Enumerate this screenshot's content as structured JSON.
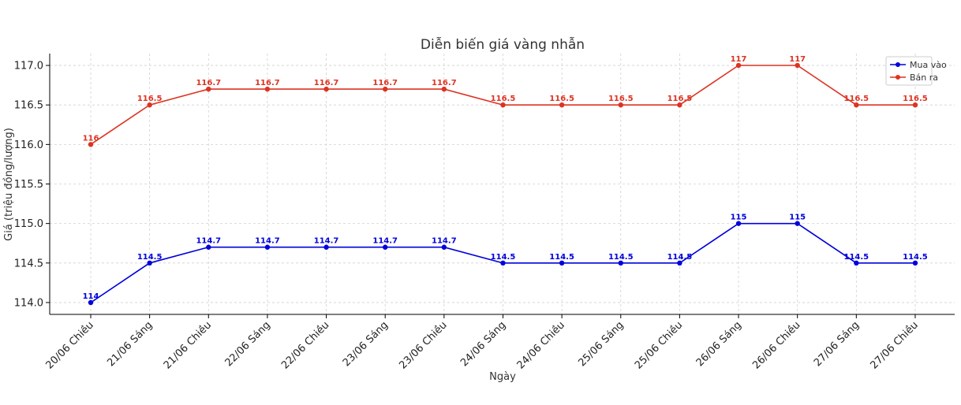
{
  "chart_data": {
    "type": "line",
    "title": "Diễn biến giá vàng nhẫn",
    "xlabel": "Ngày",
    "ylabel": "Giá (triệu đồng/lượng)",
    "ylim": [
      113.85,
      117.15
    ],
    "yticks": [
      "114.0",
      "114.5",
      "115.0",
      "115.5",
      "116.0",
      "116.5",
      "117.0"
    ],
    "grid": true,
    "legend_position": "top-right",
    "categories": [
      "20/06 Chiều",
      "21/06 Sáng",
      "21/06 Chiều",
      "22/06 Sáng",
      "22/06 Chiều",
      "23/06 Sáng",
      "23/06 Chiều",
      "24/06 Sáng",
      "24/06 Chiều",
      "25/06 Sáng",
      "25/06 Chiều",
      "26/06 Sáng",
      "26/06 Chiều",
      "27/06 Sáng",
      "27/06 Chiều"
    ],
    "series": [
      {
        "name": "Mua vào",
        "color": "#0000dd",
        "values": [
          114,
          114.5,
          114.7,
          114.7,
          114.7,
          114.7,
          114.7,
          114.5,
          114.5,
          114.5,
          114.5,
          115,
          115,
          114.5,
          114.5
        ],
        "labels": [
          "114",
          "114.5",
          "114.7",
          "114.7",
          "114.7",
          "114.7",
          "114.7",
          "114.5",
          "114.5",
          "114.5",
          "114.5",
          "115",
          "115",
          "114.5",
          "114.5"
        ]
      },
      {
        "name": "Bán ra",
        "color": "#dd3322",
        "values": [
          116,
          116.5,
          116.7,
          116.7,
          116.7,
          116.7,
          116.7,
          116.5,
          116.5,
          116.5,
          116.5,
          117,
          117,
          116.5,
          116.5
        ],
        "labels": [
          "116",
          "116.5",
          "116.7",
          "116.7",
          "116.7",
          "116.7",
          "116.7",
          "116.5",
          "116.5",
          "116.5",
          "116.5",
          "117",
          "117",
          "116.5",
          "116.5"
        ]
      }
    ]
  }
}
